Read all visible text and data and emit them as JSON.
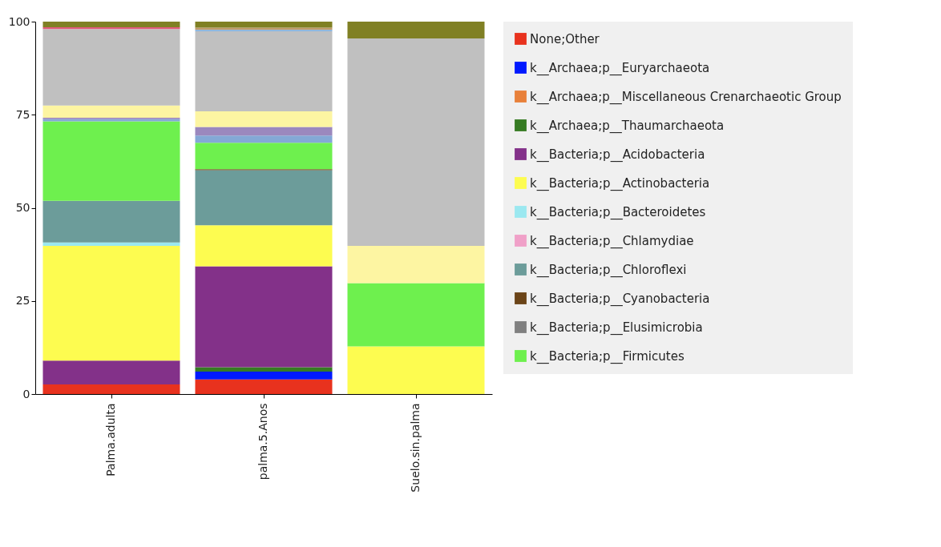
{
  "chart_data": {
    "type": "bar",
    "stacked": true,
    "categories": [
      "Palma.adulta",
      "palma.5.Anos",
      "Suelo.sin.palma"
    ],
    "ylim": [
      0,
      100
    ],
    "yticks": [
      0,
      25,
      50,
      75,
      100
    ],
    "legend": "right",
    "series": [
      {
        "name": "None;Other",
        "color": "#e8321e",
        "values": [
          2.6,
          3.9,
          0
        ]
      },
      {
        "name": "k__Archaea;p__Euryarchaeota",
        "color": "#0019ff",
        "values": [
          0,
          2.1,
          0
        ]
      },
      {
        "name": "k__Archaea;p__Miscellaneous Crenarchaeotic Group",
        "color": "#e8803a",
        "values": [
          0,
          0,
          0
        ]
      },
      {
        "name": "k__Archaea;p__Thaumarchaeota",
        "color": "#367b23",
        "values": [
          0,
          1.2,
          0
        ]
      },
      {
        "name": "k__Bacteria;p__Acidobacteria",
        "color": "#833189",
        "values": [
          6.4,
          27.1,
          0
        ]
      },
      {
        "name": "k__Bacteria;p__Actinobacteria",
        "color": "#fdfc50",
        "values": [
          30.8,
          11.0,
          12.8
        ]
      },
      {
        "name": "k__Bacteria;p__Bacteroidetes",
        "color": "#9be8f0",
        "values": [
          0.9,
          0,
          0
        ]
      },
      {
        "name": "k__Bacteria;p__Chlamydiae",
        "color": "#f0a0c8",
        "values": [
          0,
          0,
          0
        ]
      },
      {
        "name": "k__Bacteria;p__Chloroflexi",
        "color": "#6c9c9a",
        "values": [
          11.2,
          14.8,
          0
        ]
      },
      {
        "name": "k__Bacteria;p__Cyanobacteria",
        "color": "#6b4418",
        "values": [
          0,
          0.3,
          0
        ]
      },
      {
        "name": "k__Bacteria;p__Elusimicrobia",
        "color": "#808080",
        "values": [
          0,
          0,
          0
        ]
      },
      {
        "name": "k__Bacteria;p__Firmicutes",
        "color": "#6ef04e",
        "values": [
          21.3,
          7.1,
          17.0
        ]
      },
      {
        "color": "#84a8d6",
        "values": [
          0.6,
          1.9,
          0
        ]
      },
      {
        "color": "#9b88be",
        "values": [
          0.4,
          2.3,
          0
        ]
      },
      {
        "color": "#fdf5a2",
        "values": [
          3.3,
          4.2,
          10.0
        ]
      },
      {
        "color": "#c0c0c0",
        "values": [
          20.5,
          21.5,
          55.7
        ]
      },
      {
        "color": "#e05a7a",
        "values": [
          0.5,
          0,
          0
        ]
      },
      {
        "color": "#7cb5ec",
        "values": [
          0,
          0.4,
          0
        ]
      },
      {
        "color": "#c09a6a",
        "values": [
          0,
          0.6,
          0
        ]
      },
      {
        "color": "#808024",
        "values": [
          1.5,
          1.6,
          4.5
        ]
      }
    ]
  }
}
